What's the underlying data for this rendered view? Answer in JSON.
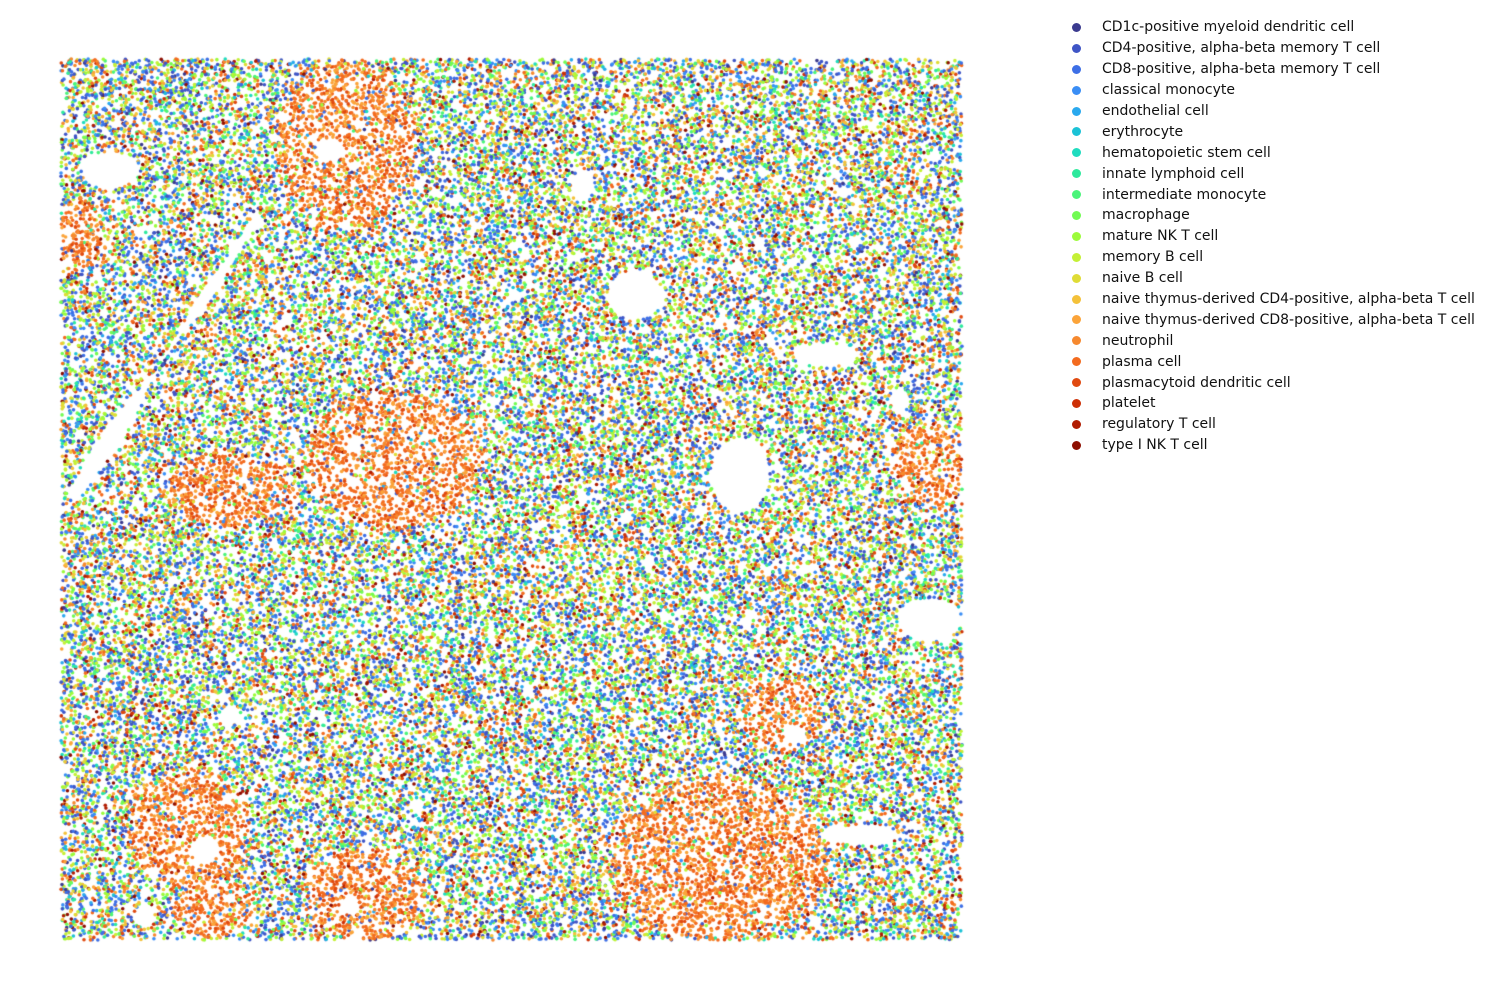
{
  "chart_data": {
    "type": "scatter",
    "title": "",
    "xlabel": "",
    "ylabel": "",
    "axes_visible": false,
    "grid": false,
    "legend_placement": "outside-right-top",
    "point_count_approx": 60000,
    "series": [
      {
        "name": "CD1c-positive myeloid dendritic cell",
        "color": "#3b3b8f",
        "abundance": 0.02
      },
      {
        "name": "CD4-positive, alpha-beta memory T cell",
        "color": "#3f55c6",
        "abundance": 0.1
      },
      {
        "name": "CD8-positive, alpha-beta memory T cell",
        "color": "#3d6fe6",
        "abundance": 0.12
      },
      {
        "name": "classical monocyte",
        "color": "#3a8ef5",
        "abundance": 0.06
      },
      {
        "name": "endothelial cell",
        "color": "#2aa9ee",
        "abundance": 0.04
      },
      {
        "name": "erythrocyte",
        "color": "#1bc2d6",
        "abundance": 0.02
      },
      {
        "name": "hematopoietic stem cell",
        "color": "#1fdcbf",
        "abundance": 0.02
      },
      {
        "name": "innate lymphoid cell",
        "color": "#2ee99d",
        "abundance": 0.03
      },
      {
        "name": "intermediate monocyte",
        "color": "#4bf47a",
        "abundance": 0.04
      },
      {
        "name": "macrophage",
        "color": "#72fb53",
        "abundance": 0.06
      },
      {
        "name": "mature NK T cell",
        "color": "#9cfb3b",
        "abundance": 0.07
      },
      {
        "name": "memory B cell",
        "color": "#c4f036",
        "abundance": 0.08
      },
      {
        "name": "naive B cell",
        "color": "#dfdc36",
        "abundance": 0.05
      },
      {
        "name": "naive thymus-derived CD4-positive, alpha-beta T cell",
        "color": "#f4c13a",
        "abundance": 0.05
      },
      {
        "name": "naive thymus-derived CD8-positive, alpha-beta T cell",
        "color": "#fba43a",
        "abundance": 0.04
      },
      {
        "name": "neutrophil",
        "color": "#f6892f",
        "abundance": 0.03
      },
      {
        "name": "plasma cell",
        "color": "#f36b1f",
        "abundance": 0.08
      },
      {
        "name": "plasmacytoid dendritic cell",
        "color": "#e04a10",
        "abundance": 0.03
      },
      {
        "name": "platelet",
        "color": "#cd3006",
        "abundance": 0.02
      },
      {
        "name": "regulatory T cell",
        "color": "#b11d02",
        "abundance": 0.02
      },
      {
        "name": "type I NK T cell",
        "color": "#8e0f01",
        "abundance": 0.02
      }
    ]
  }
}
